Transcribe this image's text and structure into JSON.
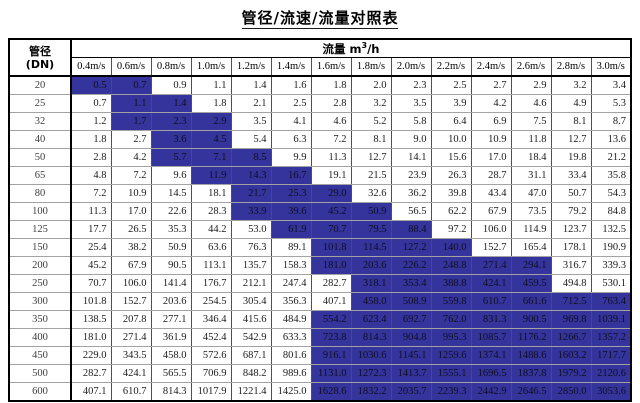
{
  "title": "管径/流速/流量对照表",
  "colors": {
    "highlight_fill": "#34349c",
    "border_outer": "#000000",
    "grid_horizontal": "#a3a3a3",
    "grid_vertical": "#4f4f4f"
  },
  "table": {
    "corner_line1": "管径",
    "corner_line2": "(DN)",
    "flow_label": "流量",
    "flow_unit_base": "m",
    "flow_unit_exp": "3",
    "flow_unit_per": "/h",
    "columns": [
      "0.4m/s",
      "0.6m/s",
      "0.8m/s",
      "1.0m/s",
      "1.2m/s",
      "1.4m/s",
      "1.6m/s",
      "1.8m/s",
      "2.0m/s",
      "2.2m/s",
      "2.4m/s",
      "2.6m/s",
      "2.8m/s",
      "3.0m/s"
    ],
    "rows": [
      {
        "dn": "20",
        "hl_start": 0,
        "hl_end": 1,
        "values": [
          "0.5",
          "0.7",
          "0.9",
          "1.1",
          "1.4",
          "1.6",
          "1.8",
          "2.0",
          "2.3",
          "2.5",
          "2.7",
          "2.9",
          "3.2",
          "3.4"
        ]
      },
      {
        "dn": "25",
        "hl_start": 1,
        "hl_end": 2,
        "values": [
          "0.7",
          "1.1",
          "1.4",
          "1.8",
          "2.1",
          "2.5",
          "2.8",
          "3.2",
          "3.5",
          "3.9",
          "4.2",
          "4.6",
          "4.9",
          "5.3"
        ]
      },
      {
        "dn": "32",
        "hl_start": 1,
        "hl_end": 3,
        "values": [
          "1.2",
          "1.7",
          "2.3",
          "2.9",
          "3.5",
          "4.1",
          "4.6",
          "5.2",
          "5.8",
          "6.4",
          "6.9",
          "7.5",
          "8.1",
          "8.7"
        ]
      },
      {
        "dn": "40",
        "hl_start": 2,
        "hl_end": 3,
        "values": [
          "1.8",
          "2.7",
          "3.6",
          "4.5",
          "5.4",
          "6.3",
          "7.2",
          "8.1",
          "9.0",
          "10.0",
          "10.9",
          "11.8",
          "12.7",
          "13.6"
        ]
      },
      {
        "dn": "50",
        "hl_start": 2,
        "hl_end": 4,
        "values": [
          "2.8",
          "4.2",
          "5.7",
          "7.1",
          "8.5",
          "9.9",
          "11.3",
          "12.7",
          "14.1",
          "15.6",
          "17.0",
          "18.4",
          "19.8",
          "21.2"
        ]
      },
      {
        "dn": "65",
        "hl_start": 3,
        "hl_end": 5,
        "values": [
          "4.8",
          "7.2",
          "9.6",
          "11.9",
          "14.3",
          "16.7",
          "19.1",
          "21.5",
          "23.9",
          "26.3",
          "28.7",
          "31.1",
          "33.4",
          "35.8"
        ]
      },
      {
        "dn": "80",
        "hl_start": 4,
        "hl_end": 6,
        "values": [
          "7.2",
          "10.9",
          "14.5",
          "18.1",
          "21.7",
          "25.3",
          "29.0",
          "32.6",
          "36.2",
          "39.8",
          "43.4",
          "47.0",
          "50.7",
          "54.3"
        ]
      },
      {
        "dn": "100",
        "hl_start": 4,
        "hl_end": 7,
        "values": [
          "11.3",
          "17.0",
          "22.6",
          "28.3",
          "33.9",
          "39.6",
          "45.2",
          "50.9",
          "56.5",
          "62.2",
          "67.9",
          "73.5",
          "79.2",
          "84.8"
        ]
      },
      {
        "dn": "125",
        "hl_start": 5,
        "hl_end": 8,
        "values": [
          "17.7",
          "26.5",
          "35.3",
          "44.2",
          "53.0",
          "61.9",
          "70.7",
          "79.5",
          "88.4",
          "97.2",
          "106.0",
          "114.9",
          "123.7",
          "132.5"
        ]
      },
      {
        "dn": "150",
        "hl_start": 6,
        "hl_end": 9,
        "values": [
          "25.4",
          "38.2",
          "50.9",
          "63.6",
          "76.3",
          "89.1",
          "101.8",
          "114.5",
          "127.2",
          "140.0",
          "152.7",
          "165.4",
          "178.1",
          "190.9"
        ]
      },
      {
        "dn": "200",
        "hl_start": 6,
        "hl_end": 11,
        "values": [
          "45.2",
          "67.9",
          "90.5",
          "113.1",
          "135.7",
          "158.3",
          "181.0",
          "203.6",
          "226.2",
          "248.8",
          "271.4",
          "294.1",
          "316.7",
          "339.3"
        ]
      },
      {
        "dn": "250",
        "hl_start": 7,
        "hl_end": 11,
        "values": [
          "70.7",
          "106.0",
          "141.4",
          "176.7",
          "212.1",
          "247.4",
          "282.7",
          "318.1",
          "353.4",
          "388.8",
          "424.1",
          "459.5",
          "494.8",
          "530.1"
        ]
      },
      {
        "dn": "300",
        "hl_start": 7,
        "hl_end": 13,
        "values": [
          "101.8",
          "152.7",
          "203.6",
          "254.5",
          "305.4",
          "356.3",
          "407.1",
          "458.0",
          "508.9",
          "559.8",
          "610.7",
          "661.6",
          "712.5",
          "763.4"
        ]
      },
      {
        "dn": "350",
        "hl_start": 6,
        "hl_end": 13,
        "values": [
          "138.5",
          "207.8",
          "277.1",
          "346.4",
          "415.6",
          "484.9",
          "554.2",
          "623.4",
          "692.7",
          "762.0",
          "831.3",
          "900.5",
          "969.8",
          "1039.1"
        ]
      },
      {
        "dn": "400",
        "hl_start": 6,
        "hl_end": 13,
        "values": [
          "181.0",
          "271.4",
          "361.9",
          "452.4",
          "542.9",
          "633.3",
          "723.8",
          "814.3",
          "904.8",
          "995.3",
          "1085.7",
          "1176.2",
          "1266.7",
          "1357.2"
        ]
      },
      {
        "dn": "450",
        "hl_start": 6,
        "hl_end": 13,
        "values": [
          "229.0",
          "343.5",
          "458.0",
          "572.6",
          "687.1",
          "801.6",
          "916.1",
          "1030.6",
          "1145.1",
          "1259.6",
          "1374.1",
          "1488.6",
          "1603.2",
          "1717.7"
        ]
      },
      {
        "dn": "500",
        "hl_start": 6,
        "hl_end": 13,
        "values": [
          "282.7",
          "424.1",
          "565.5",
          "706.9",
          "848.2",
          "989.6",
          "1131.0",
          "1272.3",
          "1413.7",
          "1555.1",
          "1696.5",
          "1837.8",
          "1979.2",
          "2120.6"
        ]
      },
      {
        "dn": "600",
        "hl_start": 6,
        "hl_end": 13,
        "values": [
          "407.1",
          "610.7",
          "814.3",
          "1017.9",
          "1221.4",
          "1425.0",
          "1628.6",
          "1832.2",
          "2035.7",
          "2239.3",
          "2442.9",
          "2646.5",
          "2850.0",
          "3053.6"
        ]
      }
    ]
  }
}
